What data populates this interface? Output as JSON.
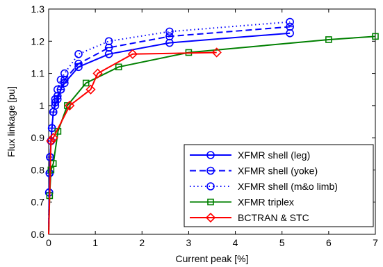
{
  "chart_data": {
    "type": "line",
    "title": "",
    "xlabel": "Current peak [%]",
    "ylabel": "Flux linkage [pu]",
    "xlim": [
      0,
      7
    ],
    "ylim": [
      0.6,
      1.3
    ],
    "xticks": [
      0,
      1,
      2,
      3,
      4,
      5,
      6,
      7
    ],
    "yticks": [
      0.6,
      0.7,
      0.8,
      0.9,
      1.0,
      1.1,
      1.2,
      1.3
    ],
    "xtick_labels": [
      "0",
      "1",
      "2",
      "3",
      "4",
      "5",
      "6",
      "7"
    ],
    "ytick_labels": [
      "0.6",
      "0.7",
      "0.8",
      "0.9",
      "1",
      "1.1",
      "1.2",
      "1.3"
    ],
    "grid": false,
    "legend_position": "bottom-right",
    "series": [
      {
        "name": "XFMR shell (leg)",
        "color": "#0000ff",
        "line_style": "solid",
        "marker": "circle",
        "x": [
          0.0,
          0.01,
          0.02,
          0.03,
          0.05,
          0.07,
          0.1,
          0.14,
          0.19,
          0.26,
          0.34,
          0.64,
          1.29,
          2.59,
          5.17
        ],
        "y": [
          0.6,
          0.73,
          0.79,
          0.84,
          0.89,
          0.93,
          0.98,
          1.0,
          1.02,
          1.05,
          1.07,
          1.12,
          1.16,
          1.195,
          1.225
        ]
      },
      {
        "name": "XFMR shell (yoke)",
        "color": "#0000ff",
        "line_style": "dashed",
        "marker": "circle-line",
        "x": [
          0.0,
          0.01,
          0.02,
          0.03,
          0.05,
          0.07,
          0.1,
          0.14,
          0.19,
          0.26,
          0.34,
          0.64,
          1.29,
          2.59,
          5.17
        ],
        "y": [
          0.6,
          0.73,
          0.79,
          0.84,
          0.89,
          0.93,
          0.98,
          1.01,
          1.03,
          1.05,
          1.08,
          1.13,
          1.18,
          1.215,
          1.245
        ]
      },
      {
        "name": "XFMR shell (m&o limb)",
        "color": "#0000ff",
        "line_style": "dotted",
        "marker": "circle",
        "x": [
          0.0,
          0.01,
          0.02,
          0.03,
          0.05,
          0.07,
          0.1,
          0.14,
          0.19,
          0.26,
          0.34,
          0.64,
          1.29,
          2.59,
          5.17
        ],
        "y": [
          0.6,
          0.73,
          0.79,
          0.84,
          0.89,
          0.93,
          0.98,
          1.02,
          1.05,
          1.08,
          1.1,
          1.16,
          1.2,
          1.23,
          1.26
        ]
      },
      {
        "name": "XFMR triplex",
        "color": "#008000",
        "line_style": "solid",
        "marker": "square",
        "x": [
          0.0,
          0.02,
          0.05,
          0.1,
          0.2,
          0.4,
          0.8,
          1.5,
          3.0,
          6.0,
          7.0
        ],
        "y": [
          0.6,
          0.72,
          0.8,
          0.82,
          0.92,
          1.0,
          1.07,
          1.12,
          1.165,
          1.205,
          1.215
        ]
      },
      {
        "name": "BCTRAN & STC",
        "color": "#ff0000",
        "line_style": "solid",
        "marker": "diamond",
        "x": [
          0.0,
          0.05,
          0.1,
          0.45,
          0.9,
          1.05,
          1.8,
          3.6
        ],
        "y": [
          0.6,
          0.89,
          0.9,
          1.0,
          1.05,
          1.1,
          1.16,
          1.165
        ]
      }
    ]
  }
}
